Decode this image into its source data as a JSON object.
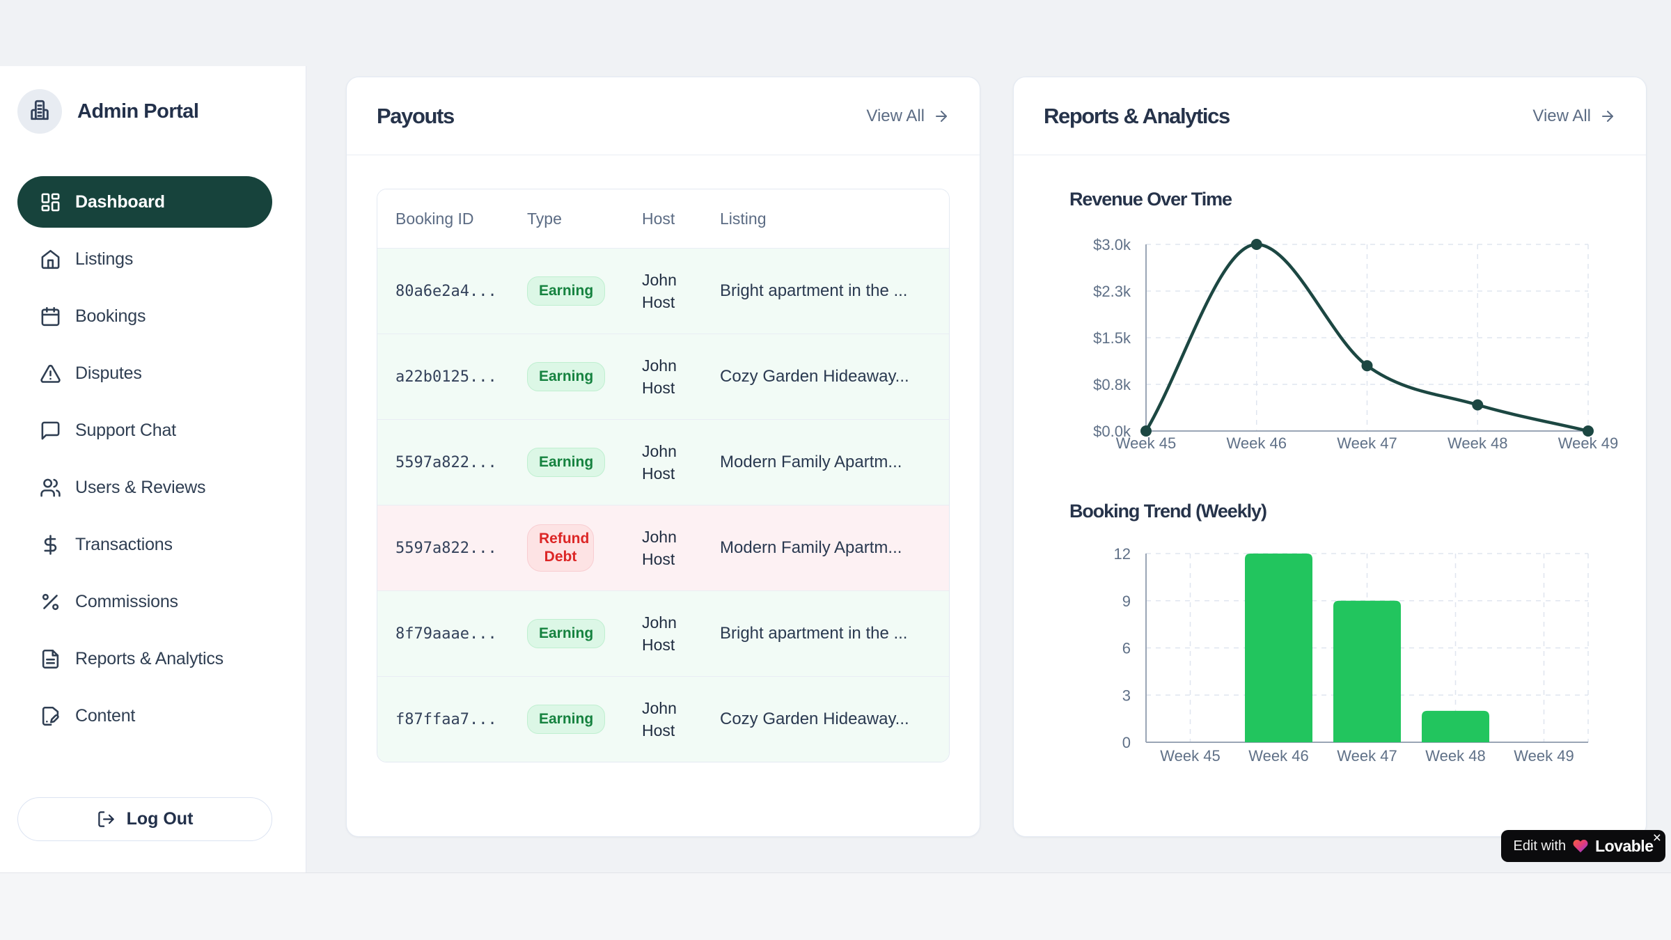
{
  "app": {
    "brand": "Admin Portal"
  },
  "sidebar": {
    "items": [
      {
        "label": "Dashboard",
        "icon": "layout-dashboard-icon",
        "active": true
      },
      {
        "label": "Listings",
        "icon": "home-icon",
        "active": false
      },
      {
        "label": "Bookings",
        "icon": "calendar-icon",
        "active": false
      },
      {
        "label": "Disputes",
        "icon": "alert-triangle-icon",
        "active": false
      },
      {
        "label": "Support Chat",
        "icon": "message-square-icon",
        "active": false
      },
      {
        "label": "Users & Reviews",
        "icon": "users-icon",
        "active": false
      },
      {
        "label": "Transactions",
        "icon": "dollar-sign-icon",
        "active": false
      },
      {
        "label": "Commissions",
        "icon": "percent-icon",
        "active": false
      },
      {
        "label": "Reports & Analytics",
        "icon": "file-text-icon",
        "active": false
      },
      {
        "label": "Content",
        "icon": "file-pen-icon",
        "active": false
      }
    ],
    "logout_label": "Log Out"
  },
  "payouts": {
    "title": "Payouts",
    "view_all": "View All",
    "columns": [
      "Booking ID",
      "Type",
      "Host",
      "Listing"
    ],
    "rows": [
      {
        "booking_id": "80a6e2a4...",
        "type": "Earning",
        "type_variant": "earning",
        "host": "John Host",
        "listing": "Bright apartment in the ..."
      },
      {
        "booking_id": "a22b0125...",
        "type": "Earning",
        "type_variant": "earning",
        "host": "John Host",
        "listing": "Cozy Garden Hideaway..."
      },
      {
        "booking_id": "5597a822...",
        "type": "Earning",
        "type_variant": "earning",
        "host": "John Host",
        "listing": "Modern Family Apartm..."
      },
      {
        "booking_id": "5597a822...",
        "type": "Refund Debt",
        "type_variant": "refund",
        "host": "John Host",
        "listing": "Modern Family Apartm..."
      },
      {
        "booking_id": "8f79aaae...",
        "type": "Earning",
        "type_variant": "earning",
        "host": "John Host",
        "listing": "Bright apartment in the ..."
      },
      {
        "booking_id": "f87ffaa7...",
        "type": "Earning",
        "type_variant": "earning",
        "host": "John Host",
        "listing": "Cozy Garden Hideaway..."
      }
    ]
  },
  "reports": {
    "title": "Reports & Analytics",
    "view_all": "View All"
  },
  "chart_data": [
    {
      "type": "line",
      "title": "Revenue Over Time",
      "x": [
        "Week 45",
        "Week 46",
        "Week 47",
        "Week 48",
        "Week 49"
      ],
      "values": [
        0,
        3000,
        1050,
        420,
        0
      ],
      "y_ticks": [
        "$3.0k",
        "$2.3k",
        "$1.5k",
        "$0.8k",
        "$0.0k"
      ],
      "ylim": [
        0,
        3000
      ],
      "grid": "dashed",
      "legend": "none",
      "line_color": "#1c4742"
    },
    {
      "type": "bar",
      "title": "Booking Trend (Weekly)",
      "categories": [
        "Week 45",
        "Week 46",
        "Week 47",
        "Week 48",
        "Week 49"
      ],
      "values": [
        0,
        12,
        9,
        2,
        0
      ],
      "y_ticks": [
        "12",
        "9",
        "6",
        "3",
        "0"
      ],
      "ylim": [
        0,
        12
      ],
      "grid": "dashed",
      "legend": "none",
      "bar_color": "#22c55e"
    }
  ],
  "lovable_badge": {
    "prefix": "Edit with",
    "brand": "Lovable",
    "close_label": "×"
  },
  "colors": {
    "active_nav": "#17433c",
    "line_series": "#1c4742",
    "bar_series": "#22c55e",
    "earning_text": "#15823f",
    "refund_text": "#dc2626"
  }
}
